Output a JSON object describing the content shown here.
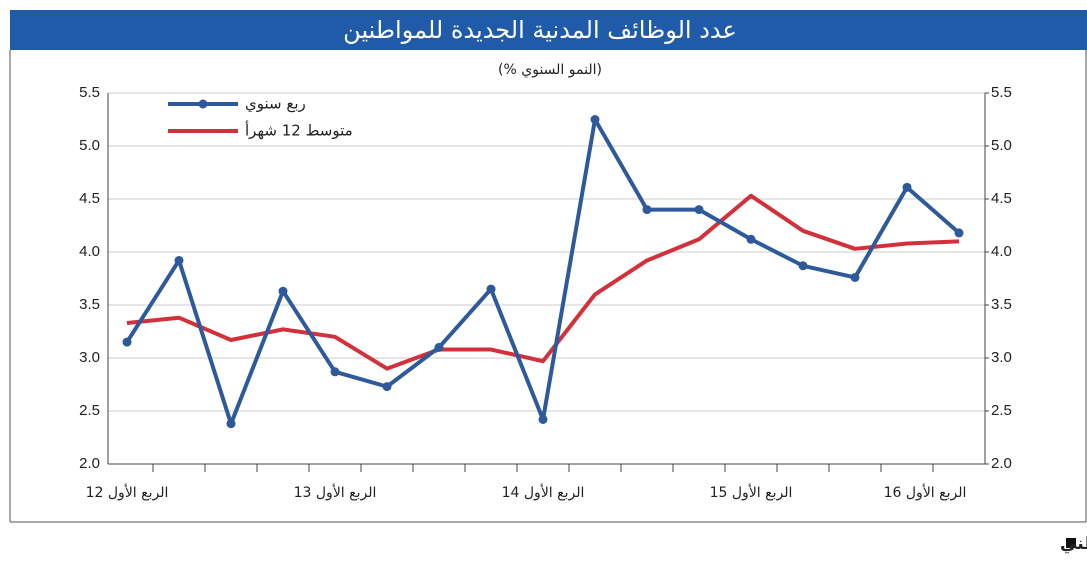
{
  "chart_data": {
    "type": "line",
    "title": "عدد الوظائف المدنية الجديدة للمواطنين",
    "subtitle": "(% النمو السنوي)",
    "source": "المصدر: الهيئة العامة للمعلومات المدنية وتقديرات بنك الكويت الوطني",
    "categories": [
      "الربع الأول 12",
      null,
      null,
      null,
      "الربع الأول 13",
      null,
      null,
      null,
      "الربع الأول 14",
      null,
      null,
      null,
      "الربع الأول 15",
      null,
      null,
      null,
      "الربع الأول 16"
    ],
    "series": [
      {
        "name": "ربع سنوي",
        "color": "#2e5a9c",
        "marker": true,
        "values": [
          3.15,
          3.92,
          2.38,
          3.63,
          2.87,
          2.73,
          3.1,
          3.65,
          2.42,
          5.25,
          4.4,
          4.4,
          4.12,
          3.87,
          3.76,
          4.61,
          4.18
        ]
      },
      {
        "name": "متوسط 12 شهرأ",
        "color": "#d2303a",
        "marker": false,
        "values": [
          3.33,
          3.38,
          3.17,
          3.27,
          3.2,
          2.9,
          3.08,
          3.08,
          2.97,
          3.6,
          3.92,
          4.12,
          4.53,
          4.2,
          4.03,
          4.08,
          4.1
        ]
      }
    ],
    "ylim": [
      2.0,
      5.5
    ],
    "yticks": [
      {
        "value": 2,
        "label": "2.0"
      },
      2.5,
      {
        "value": 3,
        "label": "3.0"
      },
      3.5,
      {
        "value": 4,
        "label": "4.0"
      },
      4.5,
      {
        "value": 5,
        "label": "5.0"
      },
      5.5
    ],
    "y2lim": [
      2.0,
      5.5
    ],
    "y2ticks": [
      {
        "value": 2,
        "label": "2.0"
      },
      2.5,
      {
        "value": 3,
        "label": "3.0"
      },
      3.5,
      {
        "value": 4,
        "label": "4.0"
      },
      4.5,
      {
        "value": 5,
        "label": "5.0"
      },
      5.5
    ],
    "grid": true
  }
}
